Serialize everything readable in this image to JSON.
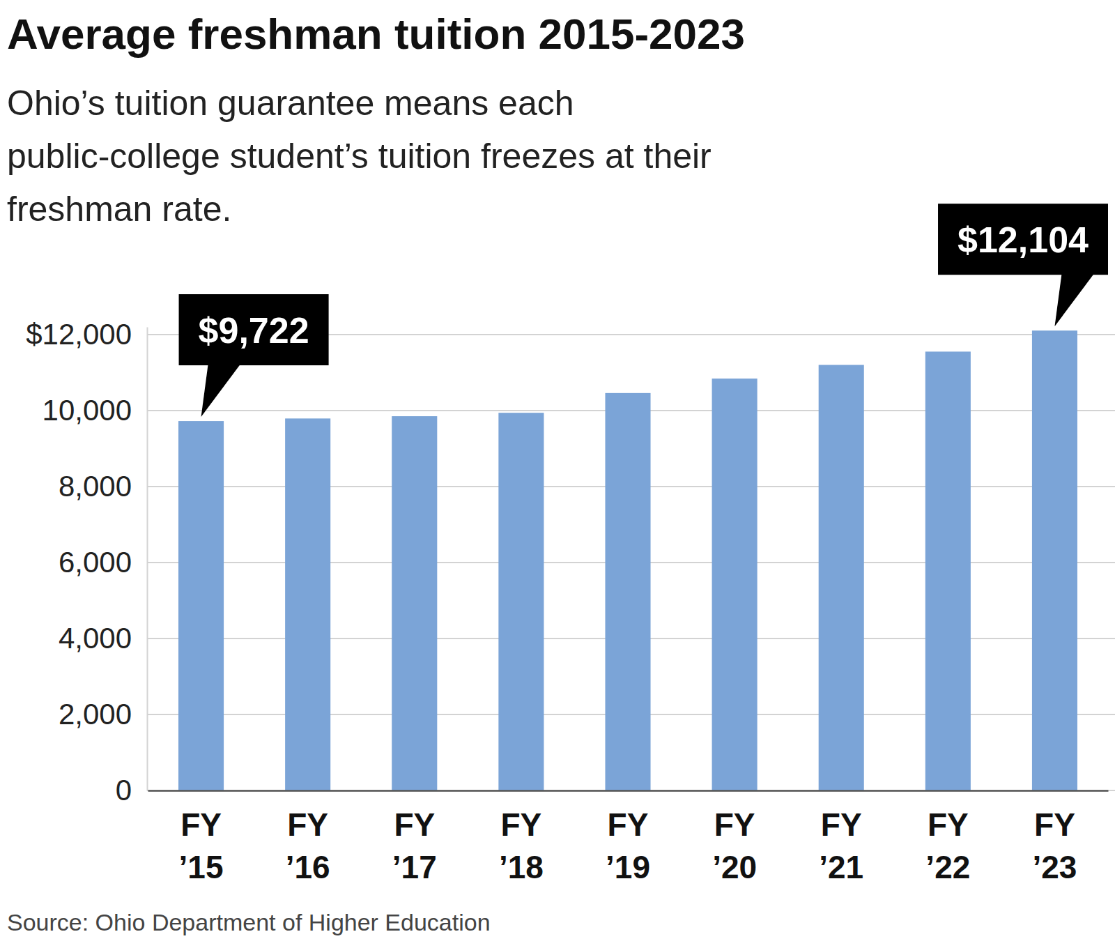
{
  "chart_data": {
    "type": "bar",
    "title": "Average freshman tuition 2015-2023",
    "subtitle": "Ohio’s tuition guarantee means each\npublic-college student’s tuition freezes at their\nfreshman rate.",
    "source": "Source: Ohio Department of Higher Education",
    "categories": [
      "FY ’15",
      "FY ’16",
      "FY ’17",
      "FY ’18",
      "FY ’19",
      "FY ’20",
      "FY ’21",
      "FY ’22",
      "FY ’23"
    ],
    "values": [
      9722,
      9790,
      9850,
      9940,
      10460,
      10840,
      11200,
      11550,
      12104
    ],
    "value_labels": [
      "$9,722",
      null,
      null,
      null,
      null,
      null,
      null,
      null,
      "$12,104"
    ],
    "data_labels": true,
    "color": "#7ba4d7",
    "ylim": [
      0,
      12200
    ],
    "yticks": [
      0,
      {
        "value": 2000,
        "label": "2,000"
      },
      {
        "value": 4000,
        "label": "4,000"
      },
      {
        "value": 6000,
        "label": "6,000"
      },
      {
        "value": 8000,
        "label": "8,000"
      },
      {
        "value": 10000,
        "label": "10,000"
      },
      {
        "value": 12000,
        "label": "$12,000"
      }
    ],
    "grid": true
  }
}
